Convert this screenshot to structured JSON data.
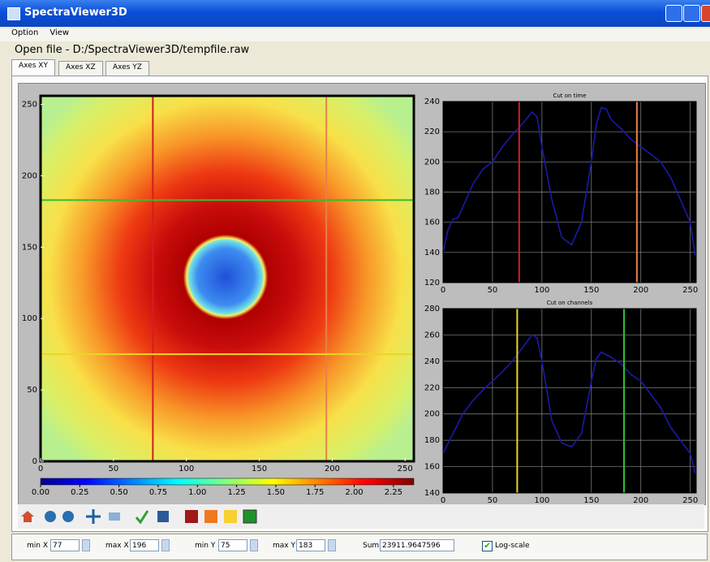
{
  "window": {
    "title": "SpectraViewer3D"
  },
  "menu": [
    "Option",
    "View"
  ],
  "status": "Open file - D:/SpectraViewer3D/tempfile.raw",
  "tabs": [
    "Axes XY",
    "Axes XZ",
    "Axes YZ"
  ],
  "chart_data": [
    {
      "type": "heatmap",
      "xlim": [
        0,
        256
      ],
      "ylim": [
        0,
        256
      ],
      "xticks": [
        0,
        50,
        100,
        150,
        200,
        250
      ],
      "yticks": [
        0,
        50,
        100,
        150,
        200,
        250
      ],
      "colorbar": {
        "lim": [
          0,
          2.38
        ],
        "ticks": [
          {
            "value": 0,
            "label": "0.00"
          },
          {
            "value": 0.25,
            "label": "0.25"
          },
          {
            "value": 0.5,
            "label": "0.50"
          },
          {
            "value": 0.75,
            "label": "0.75"
          },
          {
            "value": 1,
            "label": "1.00"
          },
          {
            "value": 1.25,
            "label": "1.25"
          },
          {
            "value": 1.5,
            "label": "1.50"
          },
          {
            "value": 1.75,
            "label": "1.75"
          },
          {
            "value": 2,
            "label": "2.00"
          },
          {
            "value": 2.25,
            "label": "2.25"
          }
        ]
      }
    },
    {
      "type": "line",
      "title": "Cut on time",
      "x": [
        0,
        5,
        10,
        15,
        20,
        30,
        40,
        50,
        60,
        70,
        80,
        90,
        95,
        100,
        110,
        120,
        130,
        140,
        150,
        155,
        160,
        165,
        170,
        180,
        190,
        200,
        210,
        220,
        230,
        240,
        250,
        255
      ],
      "series": [
        {
          "color": "#1a1aa8",
          "values": [
            140,
            155,
            162,
            163,
            170,
            185,
            195,
            200,
            210,
            218,
            225,
            233,
            230,
            210,
            175,
            150,
            145,
            160,
            200,
            225,
            236,
            235,
            228,
            222,
            215,
            210,
            205,
            200,
            190,
            175,
            160,
            138
          ]
        }
      ],
      "xlim": [
        0,
        256
      ],
      "ylim": [
        120,
        240
      ],
      "xticks": [
        0,
        50,
        100,
        150,
        200,
        250
      ],
      "yticks": [
        120,
        140,
        160,
        180,
        200,
        220,
        240
      ],
      "grid": true
    },
    {
      "type": "line",
      "title": "Cut on channels",
      "x": [
        0,
        10,
        20,
        30,
        40,
        50,
        60,
        70,
        80,
        90,
        95,
        100,
        110,
        120,
        130,
        140,
        150,
        155,
        160,
        170,
        180,
        190,
        200,
        210,
        220,
        230,
        240,
        250,
        255
      ],
      "series": [
        {
          "color": "#1a1aa8",
          "values": [
            170,
            185,
            200,
            210,
            218,
            225,
            232,
            240,
            250,
            260,
            258,
            240,
            195,
            178,
            175,
            185,
            225,
            242,
            247,
            243,
            238,
            230,
            225,
            215,
            205,
            190,
            180,
            170,
            155
          ]
        }
      ],
      "xlim": [
        0,
        256
      ],
      "ylim": [
        140,
        280
      ],
      "xticks": [
        0,
        50,
        100,
        150,
        200,
        250
      ],
      "yticks": [
        140,
        160,
        180,
        200,
        220,
        240,
        260,
        280
      ],
      "grid": true
    }
  ],
  "controls": {
    "min_x": {
      "label": "min X",
      "value": 77,
      "color": "#d02020"
    },
    "max_x": {
      "label": "max X",
      "value": 196,
      "color": "#e8804a"
    },
    "min_y": {
      "label": "min Y",
      "value": 75,
      "color": "#e8d820"
    },
    "max_y": {
      "label": "max Y",
      "value": 183,
      "color": "#30c030"
    },
    "sum": {
      "label": "Sum",
      "value": 23911.9647596
    },
    "log_scale": {
      "label": "Log-scale",
      "checked": true
    }
  }
}
